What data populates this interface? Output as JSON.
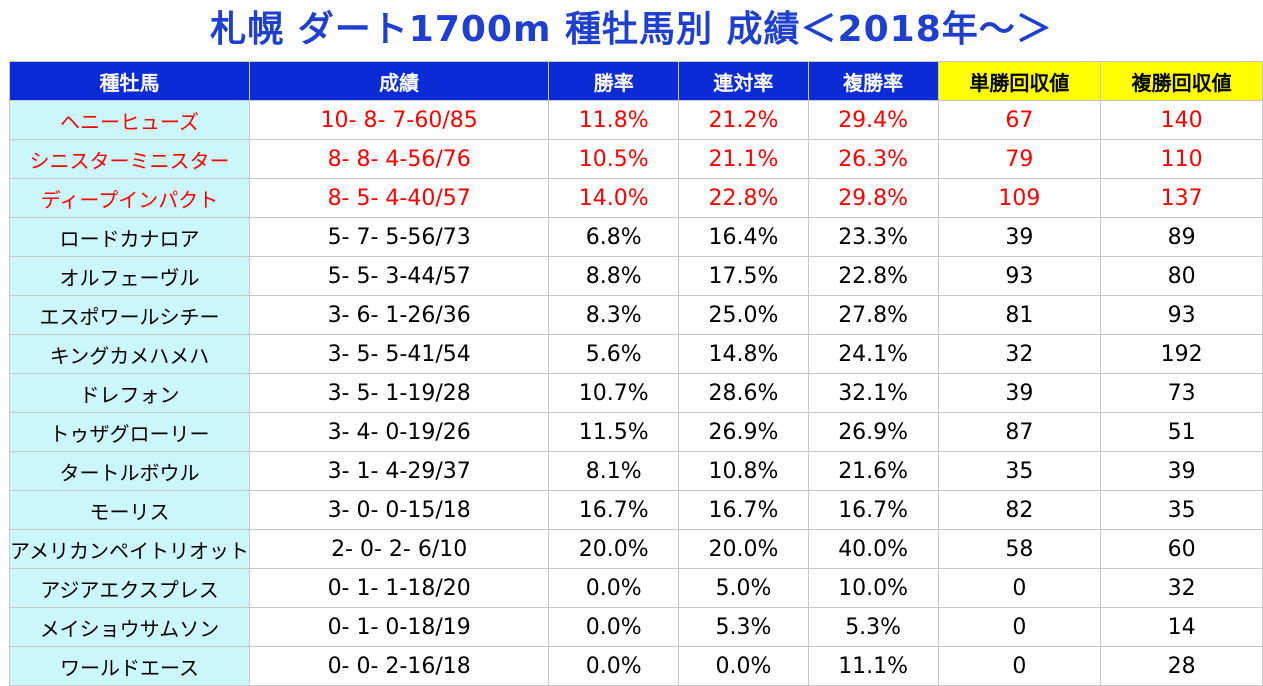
{
  "title": "札幌 ダート1700m 種牡馬別 成績＜2018年～＞",
  "colors": {
    "title": "#1f3fcf",
    "header_bg": "#0a2bd6",
    "highlight_header_bg": "#ffff00",
    "name_bg": "#ccf7fa",
    "highlight_text": "#ff0000"
  },
  "table": {
    "headers": [
      "種牡馬",
      "成績",
      "勝率",
      "連対率",
      "複勝率",
      "単勝回収値",
      "複勝回収値"
    ],
    "rows": [
      {
        "name": "ヘニーヒューズ",
        "record": "10- 8- 7-60/85",
        "win": "11.8%",
        "quinella": "21.2%",
        "place": "29.4%",
        "win_return": "67",
        "place_return": "140",
        "highlight": true
      },
      {
        "name": "シニスターミニスター",
        "record": "8- 8- 4-56/76",
        "win": "10.5%",
        "quinella": "21.1%",
        "place": "26.3%",
        "win_return": "79",
        "place_return": "110",
        "highlight": true
      },
      {
        "name": "ディープインパクト",
        "record": "8- 5- 4-40/57",
        "win": "14.0%",
        "quinella": "22.8%",
        "place": "29.8%",
        "win_return": "109",
        "place_return": "137",
        "highlight": true
      },
      {
        "name": "ロードカナロア",
        "record": "5- 7- 5-56/73",
        "win": "6.8%",
        "quinella": "16.4%",
        "place": "23.3%",
        "win_return": "39",
        "place_return": "89",
        "highlight": false
      },
      {
        "name": "オルフェーヴル",
        "record": "5- 5- 3-44/57",
        "win": "8.8%",
        "quinella": "17.5%",
        "place": "22.8%",
        "win_return": "93",
        "place_return": "80",
        "highlight": false
      },
      {
        "name": "エスポワールシチー",
        "record": "3- 6- 1-26/36",
        "win": "8.3%",
        "quinella": "25.0%",
        "place": "27.8%",
        "win_return": "81",
        "place_return": "93",
        "highlight": false
      },
      {
        "name": "キングカメハメハ",
        "record": "3- 5- 5-41/54",
        "win": "5.6%",
        "quinella": "14.8%",
        "place": "24.1%",
        "win_return": "32",
        "place_return": "192",
        "highlight": false
      },
      {
        "name": "ドレフォン",
        "record": "3- 5- 1-19/28",
        "win": "10.7%",
        "quinella": "28.6%",
        "place": "32.1%",
        "win_return": "39",
        "place_return": "73",
        "highlight": false
      },
      {
        "name": "トゥザグローリー",
        "record": "3- 4- 0-19/26",
        "win": "11.5%",
        "quinella": "26.9%",
        "place": "26.9%",
        "win_return": "87",
        "place_return": "51",
        "highlight": false
      },
      {
        "name": "タートルボウル",
        "record": "3- 1- 4-29/37",
        "win": "8.1%",
        "quinella": "10.8%",
        "place": "21.6%",
        "win_return": "35",
        "place_return": "39",
        "highlight": false
      },
      {
        "name": "モーリス",
        "record": "3- 0- 0-15/18",
        "win": "16.7%",
        "quinella": "16.7%",
        "place": "16.7%",
        "win_return": "82",
        "place_return": "35",
        "highlight": false
      },
      {
        "name": "アメリカンペイトリオット",
        "record": "2- 0- 2- 6/10",
        "win": "20.0%",
        "quinella": "20.0%",
        "place": "40.0%",
        "win_return": "58",
        "place_return": "60",
        "highlight": false
      },
      {
        "name": "アジアエクスプレス",
        "record": "0- 1- 1-18/20",
        "win": "0.0%",
        "quinella": "5.0%",
        "place": "10.0%",
        "win_return": "0",
        "place_return": "32",
        "highlight": false
      },
      {
        "name": "メイショウサムソン",
        "record": "0- 1- 0-18/19",
        "win": "0.0%",
        "quinella": "5.3%",
        "place": "5.3%",
        "win_return": "0",
        "place_return": "14",
        "highlight": false
      },
      {
        "name": "ワールドエース",
        "record": "0- 0- 2-16/18",
        "win": "0.0%",
        "quinella": "0.0%",
        "place": "11.1%",
        "win_return": "0",
        "place_return": "28",
        "highlight": false
      }
    ]
  }
}
